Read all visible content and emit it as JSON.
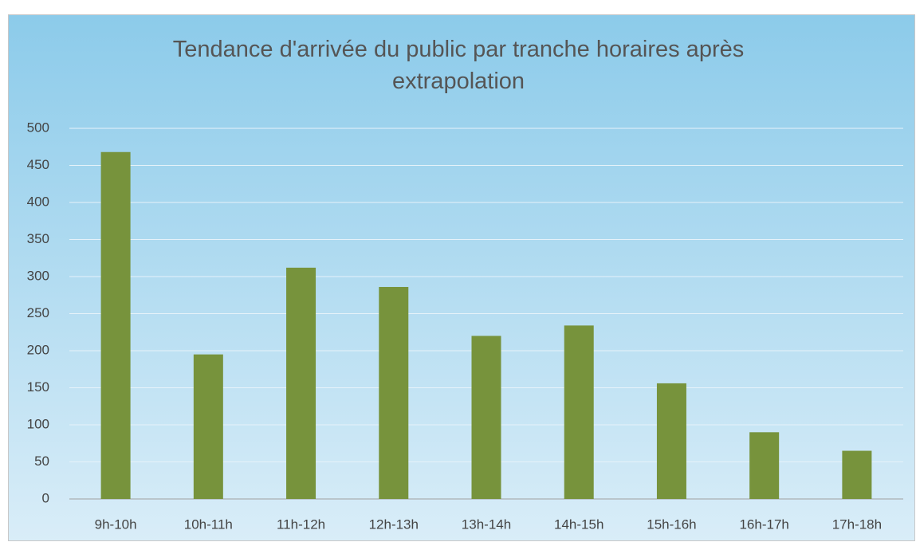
{
  "chart_data": {
    "type": "bar",
    "title": "Tendance d'arrivée du public par tranche horaires après extrapolation",
    "categories": [
      "9h-10h",
      "10h-11h",
      "11h-12h",
      "12h-13h",
      "13h-14h",
      "14h-15h",
      "15h-16h",
      "16h-17h",
      "17h-18h"
    ],
    "values": [
      468,
      195,
      312,
      286,
      220,
      234,
      156,
      90,
      65
    ],
    "color": "#77933c",
    "ylim": [
      0,
      500
    ],
    "yticks": [
      0,
      50,
      100,
      150,
      200,
      250,
      300,
      350,
      400,
      450,
      500
    ],
    "grid": true
  }
}
